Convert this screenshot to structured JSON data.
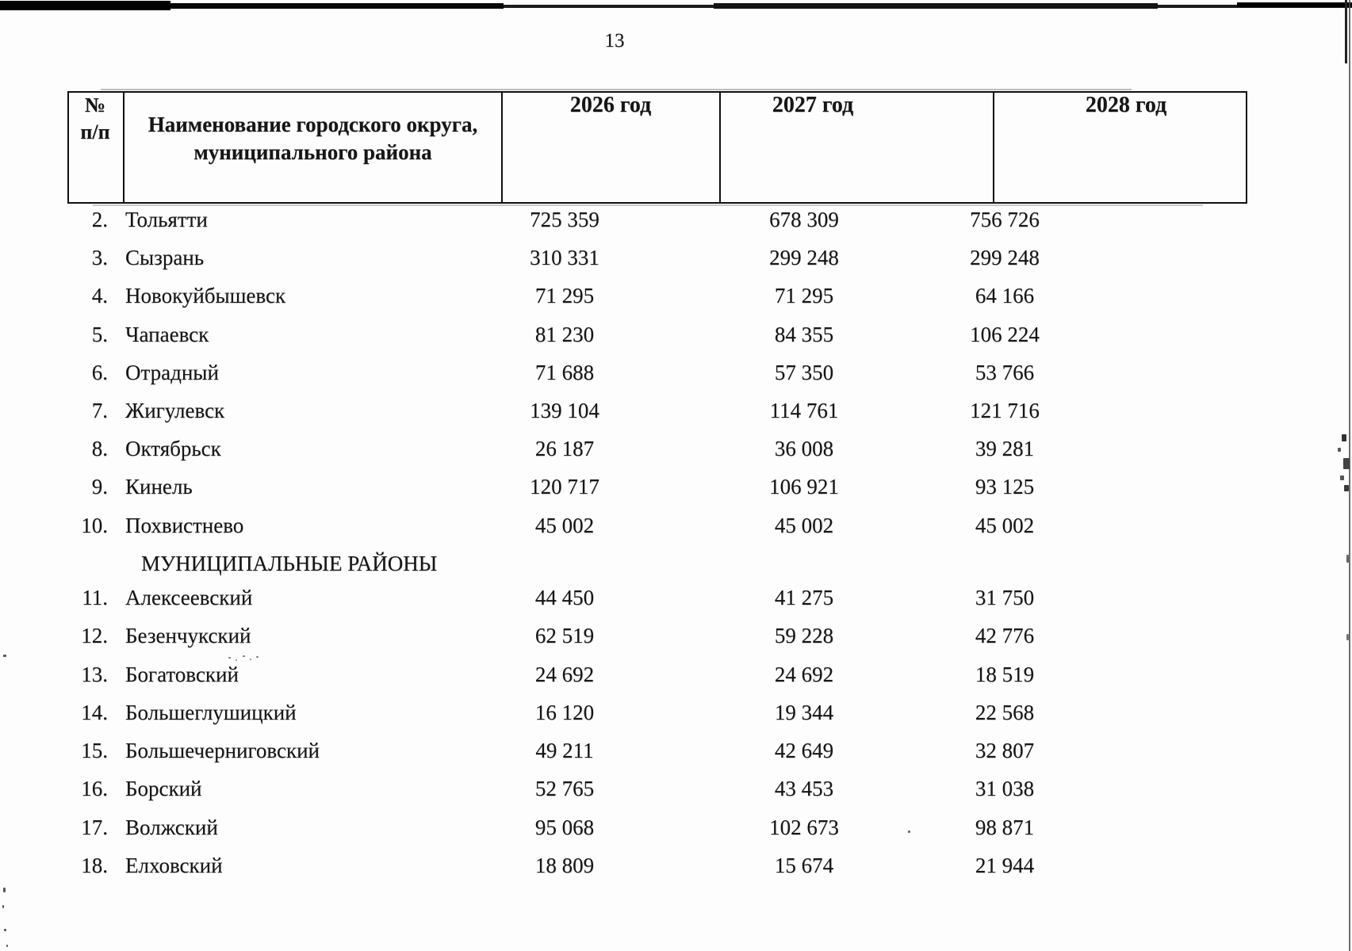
{
  "page": {
    "number": "13"
  },
  "table": {
    "header": {
      "num_line1": "№",
      "num_line2": "п/п",
      "name_line1": "Наименование городского округа,",
      "name_line2": "муниципального района",
      "year1": "2026 год",
      "year2": "2027 год",
      "year3": "2028 год"
    },
    "rows": [
      {
        "num": "2.",
        "name": "Тольятти",
        "y2026": "725 359",
        "y2027": "678 309",
        "y2028": "756 726"
      },
      {
        "num": "3.",
        "name": "Сызрань",
        "y2026": "310 331",
        "y2027": "299 248",
        "y2028": "299 248"
      },
      {
        "num": "4.",
        "name": "Новокуйбышевск",
        "y2026": "71 295",
        "y2027": "71 295",
        "y2028": "64 166"
      },
      {
        "num": "5.",
        "name": "Чапаевск",
        "y2026": "81 230",
        "y2027": "84 355",
        "y2028": "106 224"
      },
      {
        "num": "6.",
        "name": "Отрадный",
        "y2026": "71 688",
        "y2027": "57 350",
        "y2028": "53 766"
      },
      {
        "num": "7.",
        "name": "Жигулевск",
        "y2026": "139 104",
        "y2027": "114 761",
        "y2028": "121 716"
      },
      {
        "num": "8.",
        "name": "Октябрьск",
        "y2026": "26 187",
        "y2027": "36 008",
        "y2028": "39 281"
      },
      {
        "num": "9.",
        "name": "Кинель",
        "y2026": "120 717",
        "y2027": "106 921",
        "y2028": "93 125"
      },
      {
        "num": "10.",
        "name": "Похвистнево",
        "y2026": "45 002",
        "y2027": "45 002",
        "y2028": "45 002"
      },
      {
        "section": true,
        "name": "МУНИЦИПАЛЬНЫЕ РАЙОНЫ",
        "num": "",
        "y2026": "",
        "y2027": "",
        "y2028": ""
      },
      {
        "num": "11.",
        "name": "Алексеевский",
        "y2026": "44 450",
        "y2027": "41 275",
        "y2028": "31 750"
      },
      {
        "num": "12.",
        "name": "Безенчукский",
        "y2026": "62 519",
        "y2027": "59 228",
        "y2028": "42 776"
      },
      {
        "num": "13.",
        "name": "Богатовский",
        "y2026": "24 692",
        "y2027": "24 692",
        "y2028": "18 519"
      },
      {
        "num": "14.",
        "name": "Большеглушицкий",
        "y2026": "16 120",
        "y2027": "19 344",
        "y2028": "22 568"
      },
      {
        "num": "15.",
        "name": "Большечерниговский",
        "y2026": "49 211",
        "y2027": "42 649",
        "y2028": "32 807"
      },
      {
        "num": "16.",
        "name": "Борский",
        "y2026": "52 765",
        "y2027": "43 453",
        "y2028": "31 038"
      },
      {
        "num": "17.",
        "name": "Волжский",
        "y2026": "95 068",
        "y2027": "102 673",
        "y2028": "98 871"
      },
      {
        "num": "18.",
        "name": "Елховский",
        "y2026": "18 809",
        "y2027": "15 674",
        "y2028": "21 944"
      }
    ]
  }
}
